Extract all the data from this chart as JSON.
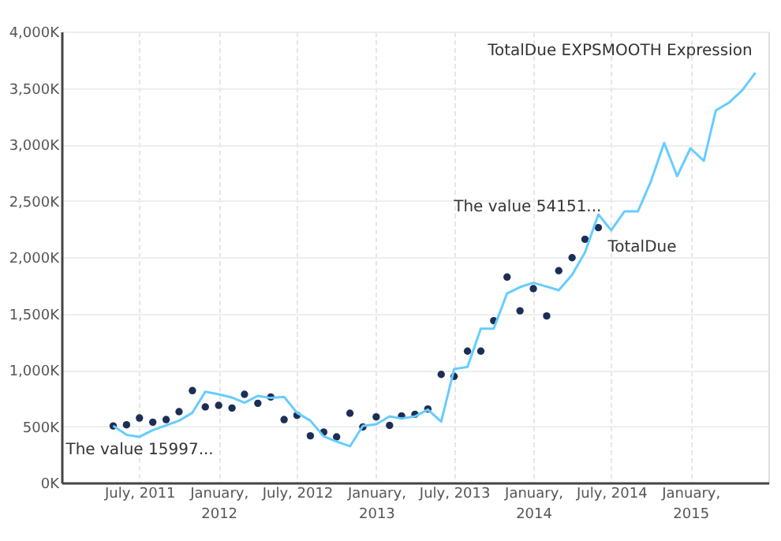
{
  "chart_data": {
    "type": "line",
    "x": [
      "2011-05",
      "2011-06",
      "2011-07",
      "2011-08",
      "2011-09",
      "2011-10",
      "2011-11",
      "2011-12",
      "2012-01",
      "2012-02",
      "2012-03",
      "2012-04",
      "2012-05",
      "2012-06",
      "2012-07",
      "2012-08",
      "2012-09",
      "2012-10",
      "2012-11",
      "2012-12",
      "2013-01",
      "2013-02",
      "2013-03",
      "2013-04",
      "2013-05",
      "2013-06",
      "2013-07",
      "2013-08",
      "2013-09",
      "2013-10",
      "2013-11",
      "2013-12",
      "2014-01",
      "2014-02",
      "2014-03",
      "2014-04",
      "2014-05",
      "2014-06",
      "2014-07",
      "2014-08",
      "2014-09",
      "2014-10",
      "2014-11",
      "2014-12",
      "2015-01",
      "2015-02",
      "2015-03",
      "2015-04",
      "2015-05",
      "2015-06"
    ],
    "series": [
      {
        "name": "TotalDue",
        "type": "scatter",
        "color": "#1b2f55",
        "marker": "circle",
        "values": [
          503,
          513,
          573,
          536,
          559,
          629,
          816,
          671,
          685,
          662,
          783,
          704,
          760,
          559,
          597,
          415,
          448,
          406,
          615,
          494,
          583,
          508,
          592,
          606,
          653,
          960,
          942,
          1166,
          1166,
          1436,
          1823,
          1524,
          1720,
          1478,
          1879,
          1995,
          2158,
          2261,
          null,
          null,
          null,
          null,
          null,
          null,
          null,
          null,
          null,
          null,
          null,
          null
        ]
      },
      {
        "name": "TotalDue EXPSMOOTH Expression",
        "color": "#66ccff",
        "marker": "none",
        "values": [
          503,
          424,
          406,
          466,
          508,
          550,
          620,
          807,
          783,
          755,
          709,
          769,
          751,
          760,
          620,
          550,
          410,
          364,
          322,
          503,
          517,
          587,
          569,
          587,
          648,
          541,
          1007,
          1026,
          1366,
          1366,
          1678,
          1734,
          1772,
          1739,
          1706,
          1842,
          2042,
          2378,
          2238,
          2406,
          2406,
          2671,
          3012,
          2718,
          2965,
          2853,
          3301,
          3371,
          3478,
          3636
        ]
      }
    ],
    "xlim": [
      "2011-01",
      "2015-07"
    ],
    "xticks": [
      {
        "value": "2011-07",
        "label": "July, 2011"
      },
      {
        "value": "2012-01",
        "label": "January, 2012"
      },
      {
        "value": "2012-07",
        "label": "July, 2012"
      },
      {
        "value": "2013-01",
        "label": "January, 2013"
      },
      {
        "value": "2013-07",
        "label": "July, 2013"
      },
      {
        "value": "2014-01",
        "label": "January, 2014"
      },
      {
        "value": "2014-07",
        "label": "July, 2014"
      },
      {
        "value": "2015-01",
        "label": "January, 2015"
      }
    ],
    "ylim": [
      0,
      4000
    ],
    "yticks": [
      {
        "value": 0,
        "label": "0K"
      },
      {
        "value": 500,
        "label": "500K"
      },
      {
        "value": 1000,
        "label": "1,000K"
      },
      {
        "value": 1500,
        "label": "1,500K"
      },
      {
        "value": 2000,
        "label": "2,000K"
      },
      {
        "value": 2500,
        "label": "2,500K"
      },
      {
        "value": 3000,
        "label": "3,000K"
      },
      {
        "value": 3500,
        "label": "3,500K"
      },
      {
        "value": 4000,
        "label": "4,000K"
      }
    ],
    "grid": true,
    "annotations": [
      {
        "text": "The value 15997...",
        "x": "2011-05",
        "y": 503
      },
      {
        "text": "The value 54151...",
        "x": "2014-06",
        "y": 2378
      }
    ]
  }
}
